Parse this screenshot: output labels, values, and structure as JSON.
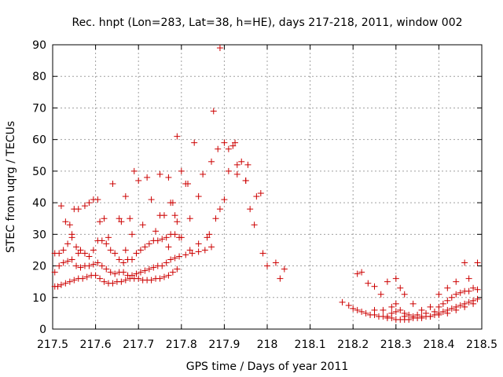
{
  "chart_data": {
    "type": "scatter",
    "title": "Rec. hnpt (Lon=283, Lat=38, h=HE), days 217-218, 2011, window 002",
    "xlabel": "GPS time / Days of year 2011",
    "ylabel": "STEC from uqrg / TECUs",
    "xlim": [
      217.5,
      218.5
    ],
    "ylim": [
      0,
      90
    ],
    "xticks": [
      "217.5",
      "217.6",
      "217.7",
      "217.8",
      "217.9",
      "218",
      "218.1",
      "218.2",
      "218.3",
      "218.4",
      "218.5"
    ],
    "yticks": [
      "0",
      "10",
      "20",
      "30",
      "40",
      "50",
      "60",
      "70",
      "80",
      "90"
    ],
    "grid": true,
    "legend": "none",
    "marker": "plus",
    "color": "#cc0000",
    "points": [
      [
        217.505,
        13.5
      ],
      [
        217.512,
        13.5
      ],
      [
        217.52,
        14
      ],
      [
        217.53,
        14.5
      ],
      [
        217.54,
        15
      ],
      [
        217.55,
        15.5
      ],
      [
        217.56,
        16
      ],
      [
        217.57,
        16
      ],
      [
        217.58,
        16.5
      ],
      [
        217.59,
        17
      ],
      [
        217.6,
        17
      ],
      [
        217.61,
        16
      ],
      [
        217.62,
        15
      ],
      [
        217.63,
        14.5
      ],
      [
        217.64,
        14.5
      ],
      [
        217.65,
        15
      ],
      [
        217.66,
        15
      ],
      [
        217.67,
        15.5
      ],
      [
        217.68,
        16
      ],
      [
        217.69,
        16
      ],
      [
        217.7,
        16
      ],
      [
        217.71,
        15.5
      ],
      [
        217.72,
        15.5
      ],
      [
        217.73,
        15.5
      ],
      [
        217.74,
        16
      ],
      [
        217.75,
        16
      ],
      [
        217.76,
        16.5
      ],
      [
        217.77,
        17
      ],
      [
        217.78,
        18
      ],
      [
        217.79,
        19
      ],
      [
        217.505,
        18
      ],
      [
        217.515,
        20
      ],
      [
        217.525,
        21
      ],
      [
        217.535,
        21.5
      ],
      [
        217.545,
        22
      ],
      [
        217.555,
        20
      ],
      [
        217.565,
        19.5
      ],
      [
        217.575,
        20
      ],
      [
        217.585,
        20
      ],
      [
        217.595,
        20.5
      ],
      [
        217.605,
        21
      ],
      [
        217.615,
        20
      ],
      [
        217.625,
        19
      ],
      [
        217.635,
        18
      ],
      [
        217.645,
        17.5
      ],
      [
        217.655,
        18
      ],
      [
        217.665,
        18
      ],
      [
        217.675,
        17
      ],
      [
        217.685,
        17
      ],
      [
        217.695,
        17.5
      ],
      [
        217.705,
        18
      ],
      [
        217.715,
        18.5
      ],
      [
        217.725,
        19
      ],
      [
        217.735,
        19.5
      ],
      [
        217.745,
        20
      ],
      [
        217.755,
        20
      ],
      [
        217.765,
        21
      ],
      [
        217.775,
        22
      ],
      [
        217.785,
        22.5
      ],
      [
        217.795,
        23
      ],
      [
        217.81,
        23.5
      ],
      [
        217.825,
        24
      ],
      [
        217.84,
        24.5
      ],
      [
        217.855,
        25
      ],
      [
        217.87,
        26
      ],
      [
        217.505,
        24
      ],
      [
        217.515,
        24
      ],
      [
        217.525,
        25
      ],
      [
        217.535,
        27
      ],
      [
        217.545,
        29
      ],
      [
        217.555,
        26
      ],
      [
        217.565,
        25
      ],
      [
        217.575,
        24
      ],
      [
        217.585,
        23
      ],
      [
        217.595,
        25
      ],
      [
        217.605,
        28
      ],
      [
        217.615,
        28
      ],
      [
        217.625,
        27
      ],
      [
        217.635,
        25
      ],
      [
        217.645,
        24
      ],
      [
        217.655,
        22
      ],
      [
        217.665,
        21
      ],
      [
        217.675,
        22
      ],
      [
        217.685,
        22
      ],
      [
        217.695,
        24
      ],
      [
        217.705,
        25
      ],
      [
        217.715,
        26
      ],
      [
        217.725,
        27
      ],
      [
        217.735,
        28
      ],
      [
        217.745,
        28
      ],
      [
        217.755,
        28.5
      ],
      [
        217.765,
        29
      ],
      [
        217.775,
        30
      ],
      [
        217.785,
        30
      ],
      [
        217.795,
        29
      ],
      [
        217.52,
        39
      ],
      [
        217.53,
        34
      ],
      [
        217.54,
        33
      ],
      [
        217.545,
        30
      ],
      [
        217.55,
        38
      ],
      [
        217.56,
        38
      ],
      [
        217.575,
        39
      ],
      [
        217.585,
        40
      ],
      [
        217.595,
        41
      ],
      [
        217.605,
        41
      ],
      [
        217.61,
        34
      ],
      [
        217.62,
        35
      ],
      [
        217.64,
        46
      ],
      [
        217.655,
        35
      ],
      [
        217.66,
        34
      ],
      [
        217.67,
        42
      ],
      [
        217.68,
        35
      ],
      [
        217.69,
        50
      ],
      [
        217.7,
        47
      ],
      [
        217.72,
        48
      ],
      [
        217.73,
        41
      ],
      [
        217.75,
        49
      ],
      [
        217.76,
        36
      ],
      [
        217.77,
        48
      ],
      [
        217.775,
        40
      ],
      [
        217.78,
        40
      ],
      [
        217.785,
        36
      ],
      [
        217.79,
        61
      ],
      [
        217.8,
        50
      ],
      [
        217.81,
        46
      ],
      [
        217.815,
        46
      ],
      [
        217.82,
        35
      ],
      [
        217.83,
        59
      ],
      [
        217.84,
        42
      ],
      [
        217.85,
        49
      ],
      [
        217.86,
        29
      ],
      [
        217.865,
        30
      ],
      [
        217.87,
        53
      ],
      [
        217.875,
        69
      ],
      [
        217.885,
        57
      ],
      [
        217.89,
        89
      ],
      [
        217.9,
        59
      ],
      [
        217.91,
        57
      ],
      [
        217.92,
        58
      ],
      [
        217.925,
        59
      ],
      [
        217.93,
        52
      ],
      [
        217.94,
        53
      ],
      [
        217.95,
        47
      ],
      [
        217.955,
        52
      ],
      [
        217.96,
        38
      ],
      [
        217.97,
        33
      ],
      [
        217.975,
        42
      ],
      [
        217.985,
        43
      ],
      [
        217.99,
        24
      ],
      [
        218.0,
        20
      ],
      [
        218.02,
        21
      ],
      [
        218.03,
        16
      ],
      [
        218.04,
        19
      ],
      [
        217.88,
        35
      ],
      [
        217.89,
        38
      ],
      [
        217.9,
        41
      ],
      [
        217.91,
        50
      ],
      [
        217.93,
        49
      ],
      [
        217.95,
        47
      ],
      [
        217.56,
        24
      ],
      [
        217.63,
        29
      ],
      [
        217.67,
        25
      ],
      [
        217.685,
        30
      ],
      [
        217.71,
        33
      ],
      [
        217.74,
        31
      ],
      [
        217.75,
        36
      ],
      [
        217.77,
        26
      ],
      [
        217.79,
        34
      ],
      [
        217.8,
        29
      ],
      [
        217.82,
        25
      ],
      [
        217.84,
        27
      ],
      [
        218.175,
        8.5
      ],
      [
        218.19,
        7.5
      ],
      [
        218.2,
        6.5
      ],
      [
        218.21,
        6
      ],
      [
        218.22,
        5.5
      ],
      [
        218.23,
        5
      ],
      [
        218.24,
        4.5
      ],
      [
        218.25,
        4.5
      ],
      [
        218.26,
        4
      ],
      [
        218.27,
        4
      ],
      [
        218.28,
        3.5
      ],
      [
        218.29,
        3.5
      ],
      [
        218.3,
        3
      ],
      [
        218.31,
        3
      ],
      [
        218.32,
        3
      ],
      [
        218.33,
        3
      ],
      [
        218.34,
        3.5
      ],
      [
        218.35,
        3.5
      ],
      [
        218.36,
        3.5
      ],
      [
        218.37,
        4
      ],
      [
        218.38,
        4
      ],
      [
        218.39,
        4.5
      ],
      [
        218.4,
        5
      ],
      [
        218.41,
        5.5
      ],
      [
        218.42,
        6
      ],
      [
        218.43,
        6.5
      ],
      [
        218.44,
        7
      ],
      [
        218.45,
        7.5
      ],
      [
        218.46,
        8
      ],
      [
        218.47,
        8.5
      ],
      [
        218.48,
        9
      ],
      [
        218.49,
        9.5
      ],
      [
        218.21,
        17.5
      ],
      [
        218.22,
        18
      ],
      [
        218.235,
        14.5
      ],
      [
        218.25,
        13.5
      ],
      [
        218.265,
        11
      ],
      [
        218.28,
        15
      ],
      [
        218.3,
        16
      ],
      [
        218.31,
        13
      ],
      [
        218.32,
        11
      ],
      [
        218.34,
        8
      ],
      [
        218.36,
        6
      ],
      [
        218.38,
        7
      ],
      [
        218.4,
        11
      ],
      [
        218.42,
        13
      ],
      [
        218.44,
        15
      ],
      [
        218.46,
        21
      ],
      [
        218.47,
        16
      ],
      [
        218.49,
        21
      ],
      [
        218.25,
        6
      ],
      [
        218.27,
        6
      ],
      [
        218.29,
        7
      ],
      [
        218.3,
        8
      ],
      [
        218.31,
        6
      ],
      [
        218.32,
        5
      ],
      [
        218.33,
        4.5
      ],
      [
        218.35,
        4.5
      ],
      [
        218.37,
        5
      ],
      [
        218.39,
        5.5
      ],
      [
        218.4,
        7
      ],
      [
        218.41,
        8
      ],
      [
        218.42,
        9
      ],
      [
        218.43,
        10
      ],
      [
        218.44,
        11
      ],
      [
        218.45,
        11.5
      ],
      [
        218.46,
        12
      ],
      [
        218.47,
        12
      ],
      [
        218.48,
        13
      ],
      [
        218.49,
        12.5
      ],
      [
        218.28,
        4
      ],
      [
        218.29,
        5
      ],
      [
        218.3,
        5.5
      ],
      [
        218.32,
        4
      ],
      [
        218.34,
        4
      ],
      [
        218.36,
        4
      ],
      [
        218.38,
        4
      ],
      [
        218.4,
        4.5
      ],
      [
        218.42,
        5
      ],
      [
        218.44,
        6
      ],
      [
        218.46,
        7
      ],
      [
        218.48,
        8
      ]
    ]
  }
}
